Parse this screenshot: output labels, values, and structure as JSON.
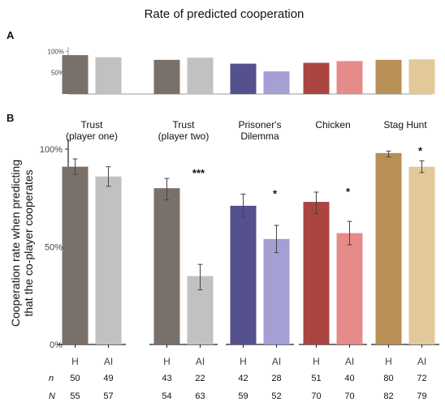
{
  "figure": {
    "title": "Rate of predicted cooperation",
    "panel_a_label": "A",
    "panel_b_label": "B"
  },
  "chart_data": [
    {
      "panel": "A",
      "type": "bar",
      "ylim": [
        0,
        1.1
      ],
      "yticks": [
        0.5,
        1.0
      ],
      "ytick_labels": [
        "50%",
        "100%"
      ],
      "grid": false,
      "groups": [
        {
          "values": [
            0.91,
            0.86
          ]
        },
        {
          "values": [
            0.8,
            0.85
          ]
        },
        {
          "values": [
            0.71,
            0.53
          ]
        },
        {
          "values": [
            0.73,
            0.77
          ]
        },
        {
          "values": [
            0.8,
            0.81
          ]
        }
      ]
    },
    {
      "panel": "B",
      "type": "bar",
      "ylabel": "Cooperation rate when predicting that the co-player cooperates",
      "ylabel_lines": [
        "Cooperation rate when predicting",
        "that the co-player cooperates"
      ],
      "ylim": [
        0,
        1.0
      ],
      "yticks": [
        0,
        0.5,
        1.0
      ],
      "ytick_labels": [
        "0%",
        "50%",
        "100%"
      ],
      "grid": false,
      "x_categories": [
        "H",
        "AI"
      ],
      "row_labels": {
        "n": "n",
        "N": "N"
      },
      "groups": [
        {
          "title_lines": [
            "Trust",
            "(player one)"
          ],
          "values": [
            0.91,
            0.86
          ],
          "err_low": [
            0.87,
            0.81
          ],
          "err_high": [
            0.95,
            0.91
          ],
          "significance": "",
          "n": [
            "50",
            "49"
          ],
          "N": [
            "55",
            "57"
          ],
          "colors": [
            "#7a706a",
            "#c3c1bf"
          ]
        },
        {
          "title_lines": [
            "Trust",
            "(player two)"
          ],
          "values": [
            0.8,
            0.35
          ],
          "err_low": [
            0.74,
            0.28
          ],
          "err_high": [
            0.85,
            0.41
          ],
          "significance": "***",
          "n": [
            "43",
            "22"
          ],
          "N": [
            "54",
            "63"
          ],
          "colors": [
            "#7a706a",
            "#c3c1bf"
          ]
        },
        {
          "title_lines": [
            "Prisoner's",
            "Dilemma"
          ],
          "values": [
            0.71,
            0.54
          ],
          "err_low": [
            0.65,
            0.47
          ],
          "err_high": [
            0.77,
            0.61
          ],
          "significance": "*",
          "n": [
            "42",
            "28"
          ],
          "N": [
            "59",
            "52"
          ],
          "colors": [
            "#55518e",
            "#a4a0d4"
          ]
        },
        {
          "title_lines": [
            "Chicken"
          ],
          "values": [
            0.73,
            0.57
          ],
          "err_low": [
            0.67,
            0.51
          ],
          "err_high": [
            0.78,
            0.63
          ],
          "significance": "*",
          "n": [
            "51",
            "40"
          ],
          "N": [
            "70",
            "70"
          ],
          "colors": [
            "#aa4542",
            "#e58b89"
          ]
        },
        {
          "title_lines": [
            "Stag Hunt"
          ],
          "values": [
            0.98,
            0.91
          ],
          "err_low": [
            0.96,
            0.88
          ],
          "err_high": [
            0.99,
            0.94
          ],
          "significance": "*",
          "n": [
            "80",
            "72"
          ],
          "N": [
            "82",
            "79"
          ],
          "colors": [
            "#b88f55",
            "#e3c89a"
          ]
        }
      ]
    }
  ]
}
